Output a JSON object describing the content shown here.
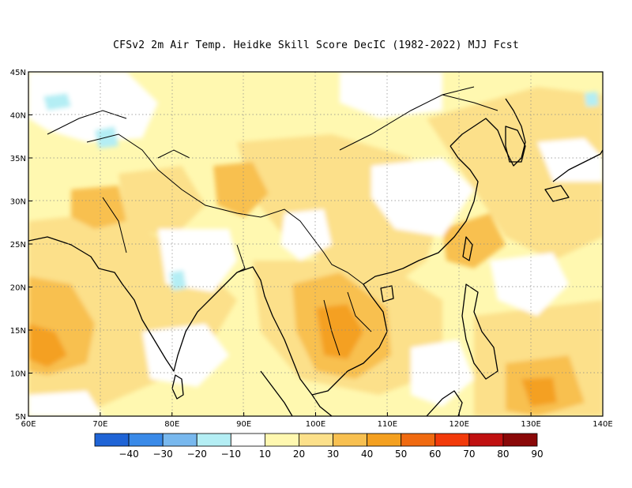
{
  "title": "CFSv2  2m Air Temp. Heidke Skill Score DecIC (1982-2022) MJJ Fcst",
  "map": {
    "lon_range": [
      60,
      140
    ],
    "lat_range": [
      5,
      45
    ],
    "x_ticks": [
      "60E",
      "70E",
      "80E",
      "90E",
      "100E",
      "110E",
      "120E",
      "130E",
      "140E"
    ],
    "y_ticks": [
      "5N",
      "10N",
      "15N",
      "20N",
      "25N",
      "30N",
      "35N",
      "40N",
      "45N"
    ]
  },
  "colorbar": {
    "colors": [
      "#1f64d6",
      "#3a8ae8",
      "#78b8ee",
      "#b4eef4",
      "#ffffff",
      "#fff8b0",
      "#fce08a",
      "#f8c050",
      "#f4a020",
      "#f06a10",
      "#f23a0a",
      "#c01010",
      "#8a0808"
    ],
    "labels": [
      "-40",
      "-30",
      "-20",
      "-10",
      "10",
      "20",
      "30",
      "40",
      "50",
      "60",
      "70",
      "80",
      "90"
    ]
  },
  "field_colors": {
    "white": "#ffffff",
    "c10": "#fff8b0",
    "c20": "#fce08a",
    "c30": "#f8c050",
    "c40": "#f4a020",
    "neg10": "#b4eef4"
  }
}
